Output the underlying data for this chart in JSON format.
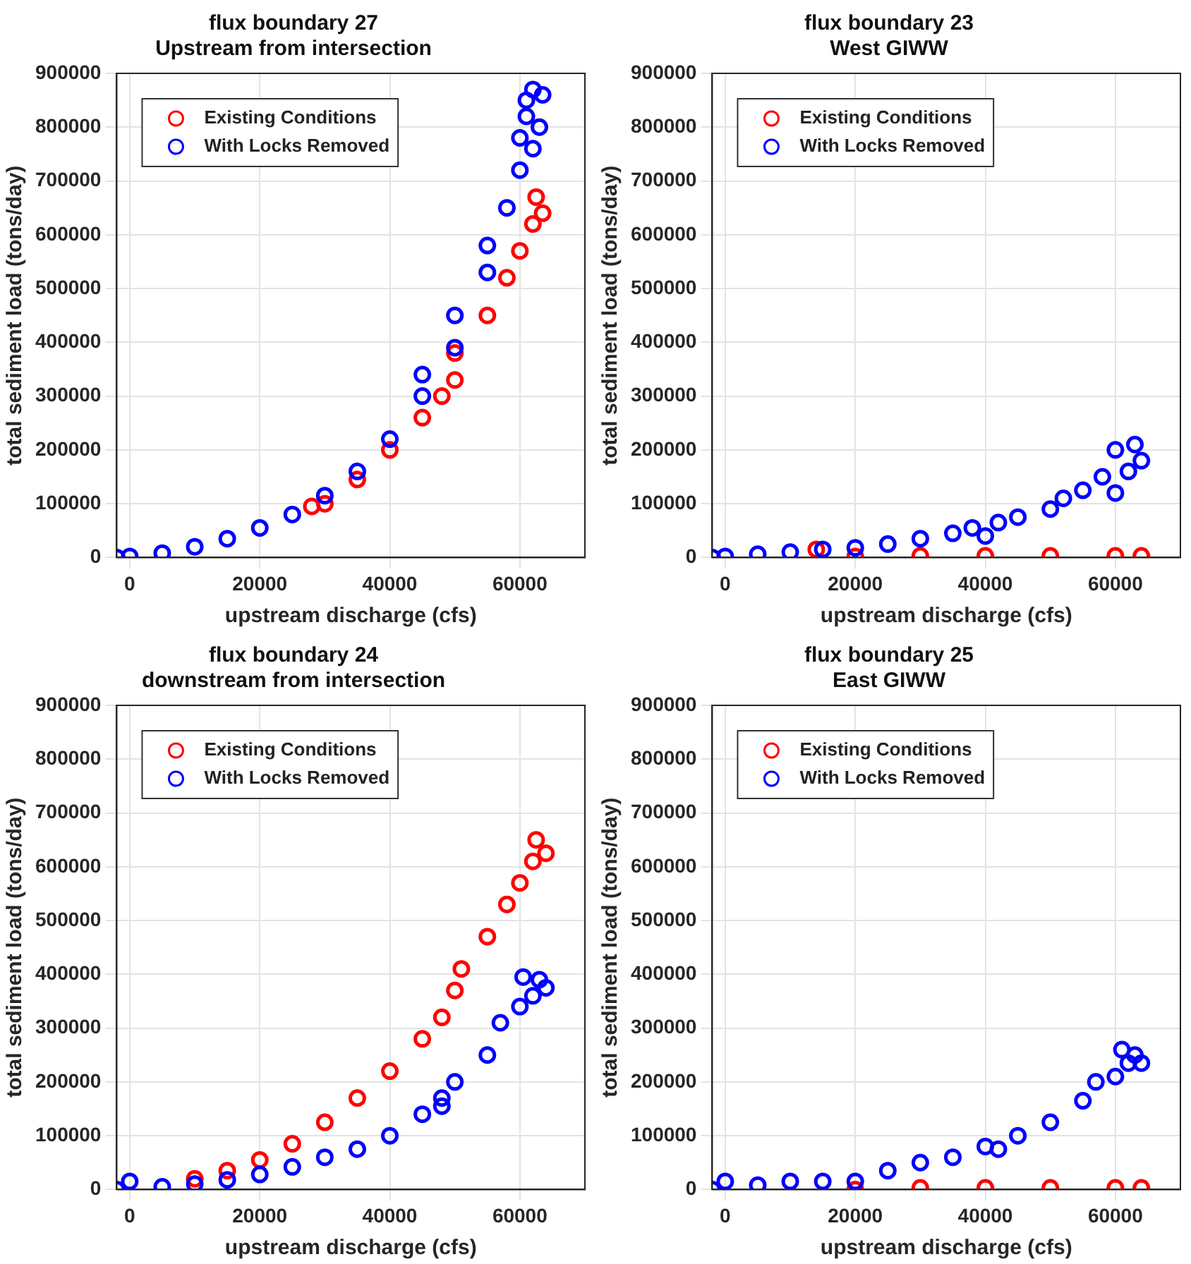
{
  "chart_data": [
    {
      "type": "scatter",
      "title": "flux boundary 27",
      "subtitle": "Upstream from intersection",
      "xlabel": "upstream discharge (cfs)",
      "ylabel": "total sediment load (tons/day)",
      "xlim": [
        -2000,
        70000
      ],
      "xticks": [
        0,
        20000,
        40000,
        60000
      ],
      "ylim": [
        0,
        900000
      ],
      "yticks": [
        0,
        100000,
        200000,
        300000,
        400000,
        500000,
        600000,
        700000,
        800000,
        900000
      ],
      "grid": true,
      "legend": "top left",
      "marker": "circle",
      "series": [
        {
          "name": "Existing Conditions",
          "color": "#ff0000",
          "x": [
            28000,
            30000,
            35000,
            40000,
            45000,
            48000,
            50000,
            50000,
            55000,
            58000,
            60000,
            62000,
            62500,
            63500
          ],
          "values": [
            95000,
            100000,
            145000,
            200000,
            260000,
            300000,
            330000,
            380000,
            450000,
            520000,
            570000,
            620000,
            670000,
            640000
          ]
        },
        {
          "name": "With Locks Removed",
          "color": "#0000ff",
          "x": [
            -2000,
            0,
            5000,
            10000,
            15000,
            20000,
            25000,
            30000,
            35000,
            40000,
            45000,
            45000,
            50000,
            50000,
            55000,
            55000,
            58000,
            60000,
            60000,
            61000,
            62000,
            63000,
            63500,
            62000,
            61000
          ],
          "values": [
            0,
            2000,
            8000,
            20000,
            35000,
            55000,
            80000,
            115000,
            160000,
            220000,
            300000,
            340000,
            390000,
            450000,
            530000,
            580000,
            650000,
            720000,
            780000,
            850000,
            870000,
            800000,
            860000,
            760000,
            820000
          ]
        }
      ]
    },
    {
      "type": "scatter",
      "title": "flux boundary 23",
      "subtitle": "West GIWW",
      "xlabel": "upstream discharge (cfs)",
      "ylabel": "total sediment load (tons/day)",
      "xlim": [
        -2000,
        70000
      ],
      "xticks": [
        0,
        20000,
        40000,
        60000
      ],
      "ylim": [
        0,
        900000
      ],
      "yticks": [
        0,
        100000,
        200000,
        300000,
        400000,
        500000,
        600000,
        700000,
        800000,
        900000
      ],
      "grid": true,
      "legend": "top left",
      "marker": "circle",
      "series": [
        {
          "name": "Existing Conditions",
          "color": "#ff0000",
          "x": [
            14000,
            20000,
            30000,
            40000,
            50000,
            60000,
            64000
          ],
          "values": [
            15000,
            2000,
            3000,
            3000,
            3000,
            3000,
            3000
          ]
        },
        {
          "name": "With Locks Removed",
          "color": "#0000ff",
          "x": [
            -2000,
            0,
            5000,
            10000,
            15000,
            20000,
            25000,
            30000,
            35000,
            38000,
            40000,
            42000,
            45000,
            50000,
            52000,
            55000,
            58000,
            60000,
            60000,
            62000,
            63000,
            64000
          ],
          "values": [
            0,
            2000,
            6000,
            10000,
            15000,
            18000,
            25000,
            35000,
            45000,
            55000,
            40000,
            65000,
            75000,
            90000,
            110000,
            125000,
            150000,
            200000,
            120000,
            160000,
            210000,
            180000
          ]
        }
      ]
    },
    {
      "type": "scatter",
      "title": "flux boundary 24",
      "subtitle": "downstream from intersection",
      "xlabel": "upstream discharge (cfs)",
      "ylabel": "total sediment load (tons/day)",
      "xlim": [
        -2000,
        70000
      ],
      "xticks": [
        0,
        20000,
        40000,
        60000
      ],
      "ylim": [
        0,
        900000
      ],
      "yticks": [
        0,
        100000,
        200000,
        300000,
        400000,
        500000,
        600000,
        700000,
        800000,
        900000
      ],
      "grid": true,
      "legend": "top left",
      "marker": "circle",
      "series": [
        {
          "name": "Existing Conditions",
          "color": "#ff0000",
          "x": [
            10000,
            15000,
            20000,
            25000,
            30000,
            35000,
            40000,
            45000,
            48000,
            50000,
            51000,
            55000,
            58000,
            60000,
            62000,
            62500,
            64000
          ],
          "values": [
            20000,
            35000,
            55000,
            85000,
            125000,
            170000,
            220000,
            280000,
            320000,
            370000,
            410000,
            470000,
            530000,
            570000,
            610000,
            650000,
            625000
          ]
        },
        {
          "name": "With Locks Removed",
          "color": "#0000ff",
          "x": [
            -2000,
            0,
            5000,
            10000,
            15000,
            20000,
            25000,
            30000,
            35000,
            40000,
            45000,
            48000,
            48000,
            50000,
            55000,
            57000,
            60000,
            60500,
            62000,
            63000,
            64000
          ],
          "values": [
            0,
            15000,
            5000,
            10000,
            18000,
            28000,
            42000,
            60000,
            75000,
            100000,
            140000,
            170000,
            155000,
            200000,
            250000,
            310000,
            340000,
            395000,
            360000,
            390000,
            375000
          ]
        }
      ]
    },
    {
      "type": "scatter",
      "title": "flux boundary 25",
      "subtitle": "East GIWW",
      "xlabel": "upstream discharge (cfs)",
      "ylabel": "total sediment load (tons/day)",
      "xlim": [
        -2000,
        70000
      ],
      "xticks": [
        0,
        20000,
        40000,
        60000
      ],
      "ylim": [
        0,
        900000
      ],
      "yticks": [
        0,
        100000,
        200000,
        300000,
        400000,
        500000,
        600000,
        700000,
        800000,
        900000
      ],
      "grid": true,
      "legend": "top left",
      "marker": "circle",
      "series": [
        {
          "name": "Existing Conditions",
          "color": "#ff0000",
          "x": [
            20000,
            30000,
            40000,
            50000,
            60000,
            64000
          ],
          "values": [
            0,
            3000,
            3000,
            3000,
            3000,
            3000
          ]
        },
        {
          "name": "With Locks Removed",
          "color": "#0000ff",
          "x": [
            -2000,
            0,
            5000,
            10000,
            15000,
            20000,
            25000,
            30000,
            35000,
            40000,
            42000,
            45000,
            50000,
            55000,
            57000,
            60000,
            61000,
            62000,
            63000,
            64000
          ],
          "values": [
            0,
            15000,
            8000,
            15000,
            15000,
            15000,
            35000,
            50000,
            60000,
            80000,
            75000,
            100000,
            125000,
            165000,
            200000,
            210000,
            260000,
            235000,
            250000,
            235000
          ]
        }
      ]
    }
  ]
}
